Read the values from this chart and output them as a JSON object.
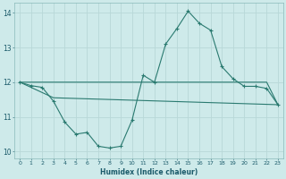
{
  "xlabel": "Humidex (Indice chaleur)",
  "bg_color": "#ceeaea",
  "grid_color": "#b8d8d8",
  "line_color": "#2a7a70",
  "xlim": [
    -0.5,
    23.5
  ],
  "ylim": [
    9.8,
    14.3
  ],
  "yticks": [
    10,
    11,
    12,
    13,
    14
  ],
  "xticks": [
    0,
    1,
    2,
    3,
    4,
    5,
    6,
    7,
    8,
    9,
    10,
    11,
    12,
    13,
    14,
    15,
    16,
    17,
    18,
    19,
    20,
    21,
    22,
    23
  ],
  "series1_x": [
    0,
    1,
    2,
    3,
    4,
    5,
    6,
    7,
    8,
    9,
    10,
    11,
    12,
    13,
    14,
    15,
    16,
    17,
    18,
    19,
    20,
    21,
    22,
    23
  ],
  "series1_y": [
    12.0,
    11.9,
    11.85,
    11.45,
    10.85,
    10.5,
    10.55,
    10.15,
    10.1,
    10.15,
    10.9,
    12.2,
    12.0,
    13.1,
    13.55,
    14.05,
    13.7,
    13.5,
    12.45,
    12.1,
    11.88,
    11.88,
    11.82,
    11.35
  ],
  "series2_x": [
    0,
    3,
    23
  ],
  "series2_y": [
    12.0,
    11.55,
    11.35
  ],
  "series3_x": [
    0,
    10,
    11,
    14,
    16,
    17,
    19,
    20,
    21,
    22,
    23
  ],
  "series3_y": [
    12.0,
    12.0,
    12.0,
    12.0,
    12.0,
    12.0,
    12.0,
    12.0,
    12.0,
    12.0,
    11.35
  ]
}
